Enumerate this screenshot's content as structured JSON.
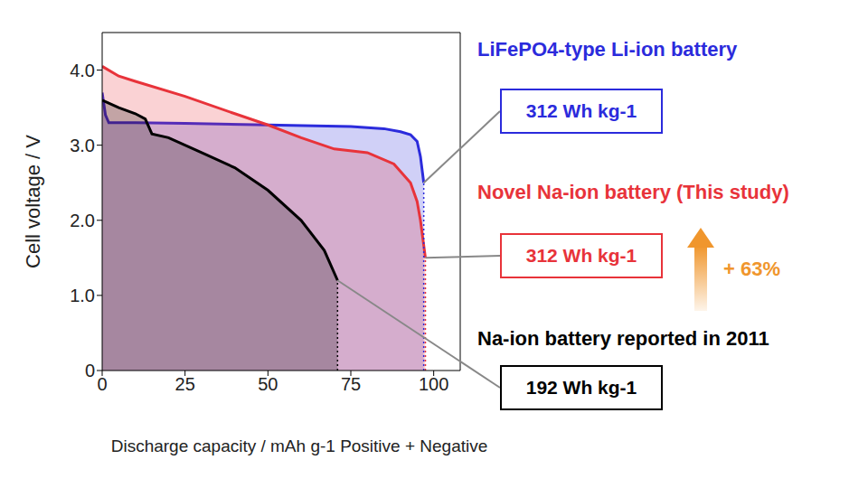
{
  "chart_data": {
    "type": "line",
    "x_label": "Discharge capacity / mAh g-1 Positive + Negative",
    "y_label": "Cell voltage / V",
    "xlim": [
      0,
      108
    ],
    "xticks": [
      0,
      25,
      50,
      75,
      100
    ],
    "ylim": [
      0,
      4.5
    ],
    "yticks": [
      0,
      {
        "value": 1,
        "label": "1.0"
      },
      {
        "value": 2,
        "label": "2.0"
      },
      {
        "value": 3,
        "label": "3.0"
      },
      {
        "value": 4,
        "label": "4.0"
      }
    ],
    "grid": false,
    "series": [
      {
        "name": "LiFePO4-type Li-ion battery",
        "color": "#2b2bdc",
        "x": [
          0,
          1,
          2,
          10,
          25,
          50,
          75,
          85,
          90,
          93,
          95,
          96,
          97
        ],
        "values": [
          3.7,
          3.4,
          3.3,
          3.3,
          3.29,
          3.27,
          3.25,
          3.22,
          3.18,
          3.14,
          3.05,
          2.85,
          2.5
        ]
      },
      {
        "name": "Novel Na-ion battery (This study)",
        "color": "#e8333a",
        "x": [
          0,
          5,
          10,
          25,
          40,
          50,
          60,
          70,
          80,
          88,
          93,
          95,
          96,
          97.5
        ],
        "values": [
          4.05,
          3.92,
          3.85,
          3.65,
          3.42,
          3.27,
          3.1,
          2.95,
          2.9,
          2.75,
          2.5,
          2.25,
          2.0,
          1.5
        ]
      },
      {
        "name": "Na-ion battery reported in 2011",
        "color": "#000000",
        "x": [
          0,
          5,
          10,
          13,
          15,
          20,
          30,
          40,
          50,
          60,
          67,
          71
        ],
        "values": [
          3.6,
          3.5,
          3.42,
          3.35,
          3.15,
          3.1,
          2.9,
          2.7,
          2.4,
          2.0,
          1.6,
          1.2
        ]
      }
    ],
    "annotations": [
      {
        "series": "LiFePO4-type Li-ion battery",
        "text": "312 Wh kg-1"
      },
      {
        "series": "Novel Na-ion battery (This study)",
        "text": "312 Wh kg-1"
      },
      {
        "series": "Na-ion battery reported in 2011",
        "text": "192 Wh kg-1"
      },
      {
        "text": "+ 63%",
        "color": "#f0962d"
      }
    ]
  }
}
